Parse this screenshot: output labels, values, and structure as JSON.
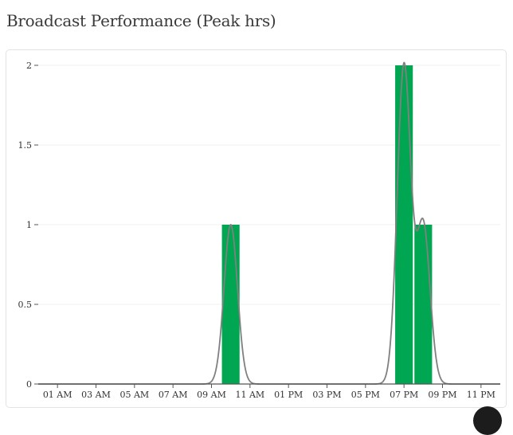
{
  "page": {
    "title": "Broadcast Performance (Peak hrs)"
  },
  "colors": {
    "bar": "#00a651",
    "curve": "#808080",
    "axis": "#555555",
    "grid": "#f0f0f0"
  },
  "chart_data": {
    "type": "bar",
    "title": "Broadcast Performance (Peak hrs)",
    "xlabel": "",
    "ylabel": "",
    "x_range": [
      0,
      24
    ],
    "ylim": [
      0,
      2
    ],
    "y_ticks": [
      0,
      0.5,
      1,
      1.5,
      2
    ],
    "y_tick_labels": [
      "0",
      "0.5",
      "1",
      "1.5",
      "2"
    ],
    "x_ticks": [
      {
        "hour": 1,
        "label": "01 AM"
      },
      {
        "hour": 3,
        "label": "03 AM"
      },
      {
        "hour": 5,
        "label": "05 AM"
      },
      {
        "hour": 7,
        "label": "07 AM"
      },
      {
        "hour": 9,
        "label": "09 AM"
      },
      {
        "hour": 11,
        "label": "11 AM"
      },
      {
        "hour": 13,
        "label": "01 PM"
      },
      {
        "hour": 15,
        "label": "03 PM"
      },
      {
        "hour": 17,
        "label": "05 PM"
      },
      {
        "hour": 19,
        "label": "07 PM"
      },
      {
        "hour": 21,
        "label": "09 PM"
      },
      {
        "hour": 23,
        "label": "11 PM"
      }
    ],
    "bars": [
      {
        "hour": 10,
        "value": 1
      },
      {
        "hour": 19,
        "value": 2
      },
      {
        "hour": 20,
        "value": 1
      }
    ],
    "smoothed_line": true,
    "grid": "horizontal"
  }
}
